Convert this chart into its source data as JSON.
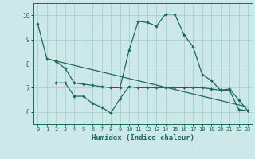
{
  "xlabel": "Humidex (Indice chaleur)",
  "xlim": [
    -0.5,
    23.5
  ],
  "ylim": [
    5.5,
    10.5
  ],
  "yticks": [
    6,
    7,
    8,
    9,
    10
  ],
  "xticks": [
    0,
    1,
    2,
    3,
    4,
    5,
    6,
    7,
    8,
    9,
    10,
    11,
    12,
    13,
    14,
    15,
    16,
    17,
    18,
    19,
    20,
    21,
    22,
    23
  ],
  "bg_color": "#cce8e8",
  "grid_color": "#aacfcf",
  "line_color": "#1a6b5a",
  "line1_x": [
    0,
    1,
    2,
    3,
    4,
    5,
    6,
    7,
    8,
    9,
    10,
    11,
    12,
    13,
    14,
    15,
    16,
    17,
    18,
    19,
    20,
    21,
    22,
    23
  ],
  "line1_y": [
    9.65,
    8.2,
    8.1,
    7.8,
    7.2,
    7.15,
    7.1,
    7.05,
    7.0,
    7.0,
    8.55,
    9.75,
    9.7,
    9.55,
    10.05,
    10.05,
    9.2,
    8.7,
    7.55,
    7.3,
    6.9,
    6.95,
    6.5,
    6.05
  ],
  "line2_x": [
    2,
    3,
    4,
    5,
    6,
    7,
    8,
    9,
    10,
    11,
    12,
    13,
    14,
    15,
    16,
    17,
    18,
    19,
    20,
    21,
    22,
    23
  ],
  "line2_y": [
    7.2,
    7.2,
    6.65,
    6.65,
    6.35,
    6.2,
    5.95,
    6.55,
    7.05,
    7.0,
    7.0,
    7.0,
    7.0,
    7.0,
    7.0,
    7.0,
    7.0,
    6.95,
    6.9,
    6.9,
    6.1,
    6.05
  ],
  "line3_x": [
    1,
    23
  ],
  "line3_y": [
    8.2,
    6.2
  ]
}
